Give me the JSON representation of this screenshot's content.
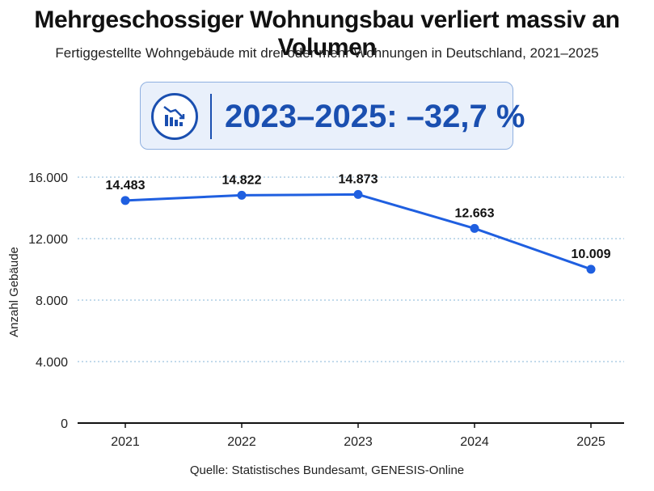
{
  "header": {
    "title": "Mehrgeschossiger Wohnungsbau verliert massiv an Volumen",
    "subtitle": "Fertiggestellte Wohngebäude mit drei oder mehr Wohnungen in Deutschland, 2021–2025"
  },
  "kpi": {
    "text": "2023–2025: –32,7 %",
    "icon": "declining-bar-chart-icon"
  },
  "source": "Quelle: Statistisches Bundesamt, GENESIS-Online",
  "colors": {
    "accent": "#1a4fb0",
    "line": "#1f5fe0",
    "kpi_bg": "#e9f0fb",
    "grid": "#9ec3df"
  },
  "chart_data": {
    "type": "line",
    "title": "Mehrgeschossiger Wohnungsbau verliert massiv an Volumen",
    "subtitle": "Fertiggestellte Wohngebäude mit drei oder mehr Wohnungen in Deutschland, 2021–2025",
    "xlabel": "",
    "ylabel": "Anzahl Gebäude",
    "categories": [
      "2021",
      "2022",
      "2023",
      "2024",
      "2025"
    ],
    "series": [
      {
        "values": [
          14483,
          14822,
          14873,
          12663,
          10009
        ],
        "labels": [
          "14.483",
          "14.822",
          "14.873",
          "12.663",
          "10.009"
        ]
      }
    ],
    "ylim": [
      0,
      16000
    ],
    "yticks": [
      0,
      4000,
      8000,
      12000,
      16000
    ],
    "ytick_labels": [
      "0",
      "4.000",
      "8.000",
      "12.000",
      "16.000"
    ],
    "grid": "horizontal dotted",
    "legend": "none"
  }
}
